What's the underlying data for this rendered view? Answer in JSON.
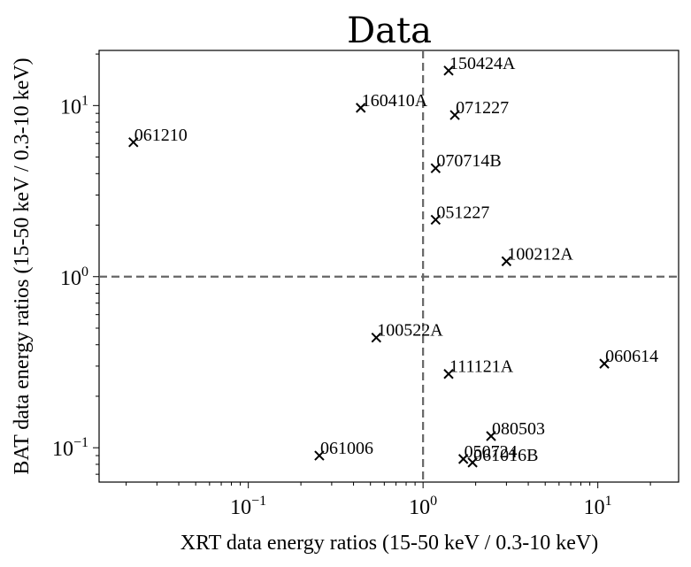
{
  "chart_data": {
    "type": "scatter",
    "title": "Data",
    "xlabel": "XRT data energy ratios (15-50 keV / 0.3-10 keV)",
    "ylabel": "BAT data energy ratios (15-50 keV / 0.3-10 keV)",
    "xscale": "log",
    "yscale": "log",
    "xlim": [
      0.014,
      29
    ],
    "ylim": [
      0.063,
      21
    ],
    "xticks": [
      {
        "value": 0.1,
        "base": "10",
        "exp": "−1"
      },
      {
        "value": 1,
        "base": "10",
        "exp": "0"
      },
      {
        "value": 10,
        "base": "10",
        "exp": "1"
      }
    ],
    "yticks": [
      {
        "value": 0.1,
        "base": "10",
        "exp": "−1"
      },
      {
        "value": 1,
        "base": "10",
        "exp": "0"
      },
      {
        "value": 10,
        "base": "10",
        "exp": "1"
      }
    ],
    "reference_lines": {
      "x": 1,
      "y": 1,
      "style": "dashed",
      "color": "#666666"
    },
    "marker": "x",
    "marker_color": "#000000",
    "points": [
      {
        "label": "150424A",
        "x": 1.4,
        "y": 16.0
      },
      {
        "label": "160410A",
        "x": 0.44,
        "y": 9.7
      },
      {
        "label": "071227",
        "x": 1.52,
        "y": 8.8
      },
      {
        "label": "061210",
        "x": 0.022,
        "y": 6.1
      },
      {
        "label": "070714B",
        "x": 1.18,
        "y": 4.3
      },
      {
        "label": "051227",
        "x": 1.18,
        "y": 2.15
      },
      {
        "label": "100212A",
        "x": 3.0,
        "y": 1.23
      },
      {
        "label": "100522A",
        "x": 0.54,
        "y": 0.44
      },
      {
        "label": "060614",
        "x": 10.9,
        "y": 0.31
      },
      {
        "label": "111121A",
        "x": 1.4,
        "y": 0.27
      },
      {
        "label": "080503",
        "x": 2.45,
        "y": 0.117
      },
      {
        "label": "061006",
        "x": 0.255,
        "y": 0.09
      },
      {
        "label": "050724",
        "x": 1.7,
        "y": 0.086
      },
      {
        "label": "061016B",
        "x": 1.92,
        "y": 0.082
      }
    ]
  }
}
